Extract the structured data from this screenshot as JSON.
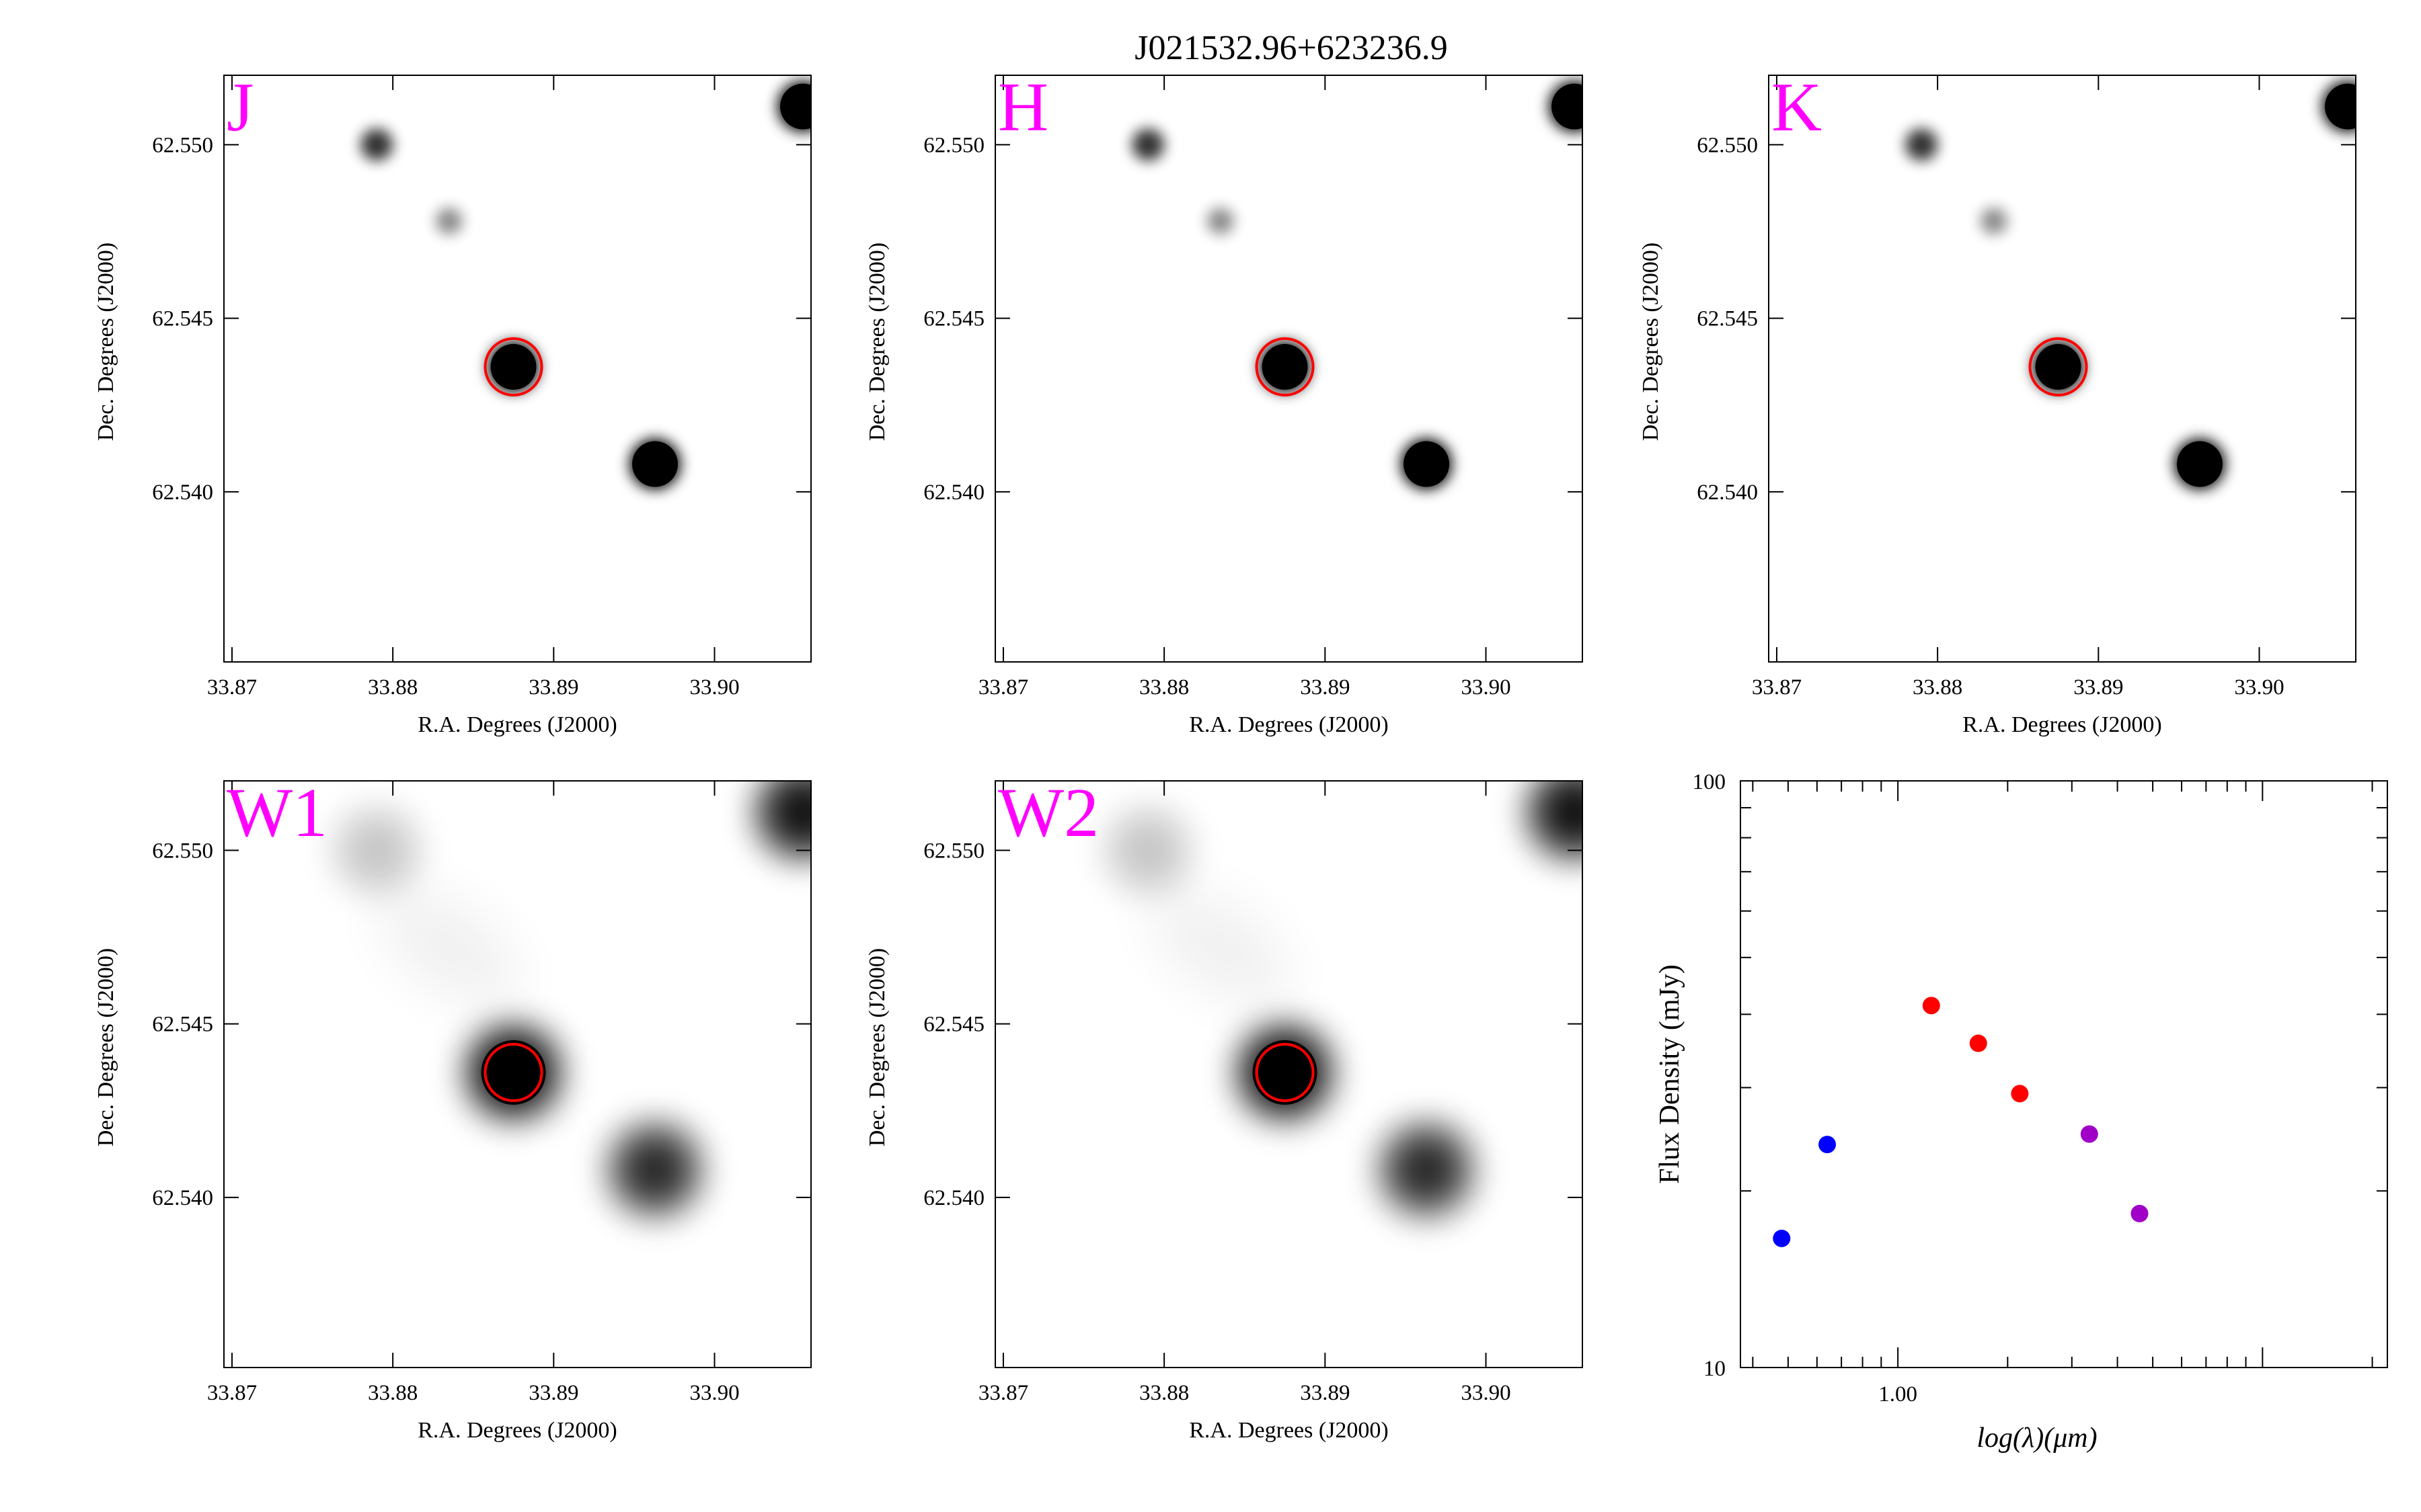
{
  "figure": {
    "title": "J021532.96+623236.9"
  },
  "image_panels": [
    {
      "band": "J",
      "layer": "nir"
    },
    {
      "band": "H",
      "layer": "nir"
    },
    {
      "band": "K",
      "layer": "nir"
    },
    {
      "band": "W1",
      "layer": "wise"
    },
    {
      "band": "W2",
      "layer": "wise"
    }
  ],
  "cutout": {
    "ra_ticks": [
      "33.87",
      "33.88",
      "33.89",
      "33.90"
    ],
    "dec_ticks": [
      "62.550",
      "62.545",
      "62.540"
    ],
    "xlabel": "R.A. Degrees (J2000)",
    "ylabel": "Dec. Degrees (J2000)",
    "target_marker_color": "#ff0000",
    "band_label_color": "#ff00ff",
    "sources": [
      {
        "ra": 33.8875,
        "dec": 62.5436,
        "nir_level": 1.0,
        "wise_level": 1.0,
        "target": true
      },
      {
        "ra": 33.8963,
        "dec": 62.5408,
        "nir_level": 1.0,
        "wise_level": 0.75,
        "target": false
      },
      {
        "ra": 33.879,
        "dec": 62.55,
        "nir_level": 0.8,
        "wise_level": 0.15,
        "target": false
      },
      {
        "ra": 33.8835,
        "dec": 62.5478,
        "nir_level": 0.45,
        "wise_level": 0.0,
        "target": false
      },
      {
        "ra": 33.9055,
        "dec": 62.5511,
        "nir_level": 1.0,
        "wise_level": 0.9,
        "target": false
      }
    ]
  },
  "chart_data": {
    "type": "scatter",
    "xlabel": "log(λ)(μm)",
    "ylabel": "Flux Density (mJy)",
    "x_scale": "log",
    "y_scale": "log",
    "xlim": [
      0.37,
      22
    ],
    "ylim": [
      10,
      100
    ],
    "x_tick_labels": [
      "1.00"
    ],
    "y_tick_labels": [
      "10",
      "100"
    ],
    "series": [
      {
        "color": "#0000ff",
        "x": [
          0.48,
          0.64
        ],
        "y": [
          16.6,
          24.0
        ]
      },
      {
        "color": "#ff0000",
        "x": [
          1.235,
          1.662,
          2.159
        ],
        "y": [
          41.4,
          35.7,
          29.3
        ]
      },
      {
        "color": "#a000c8",
        "x": [
          3.35,
          4.6
        ],
        "y": [
          25.0,
          18.3
        ]
      }
    ]
  }
}
